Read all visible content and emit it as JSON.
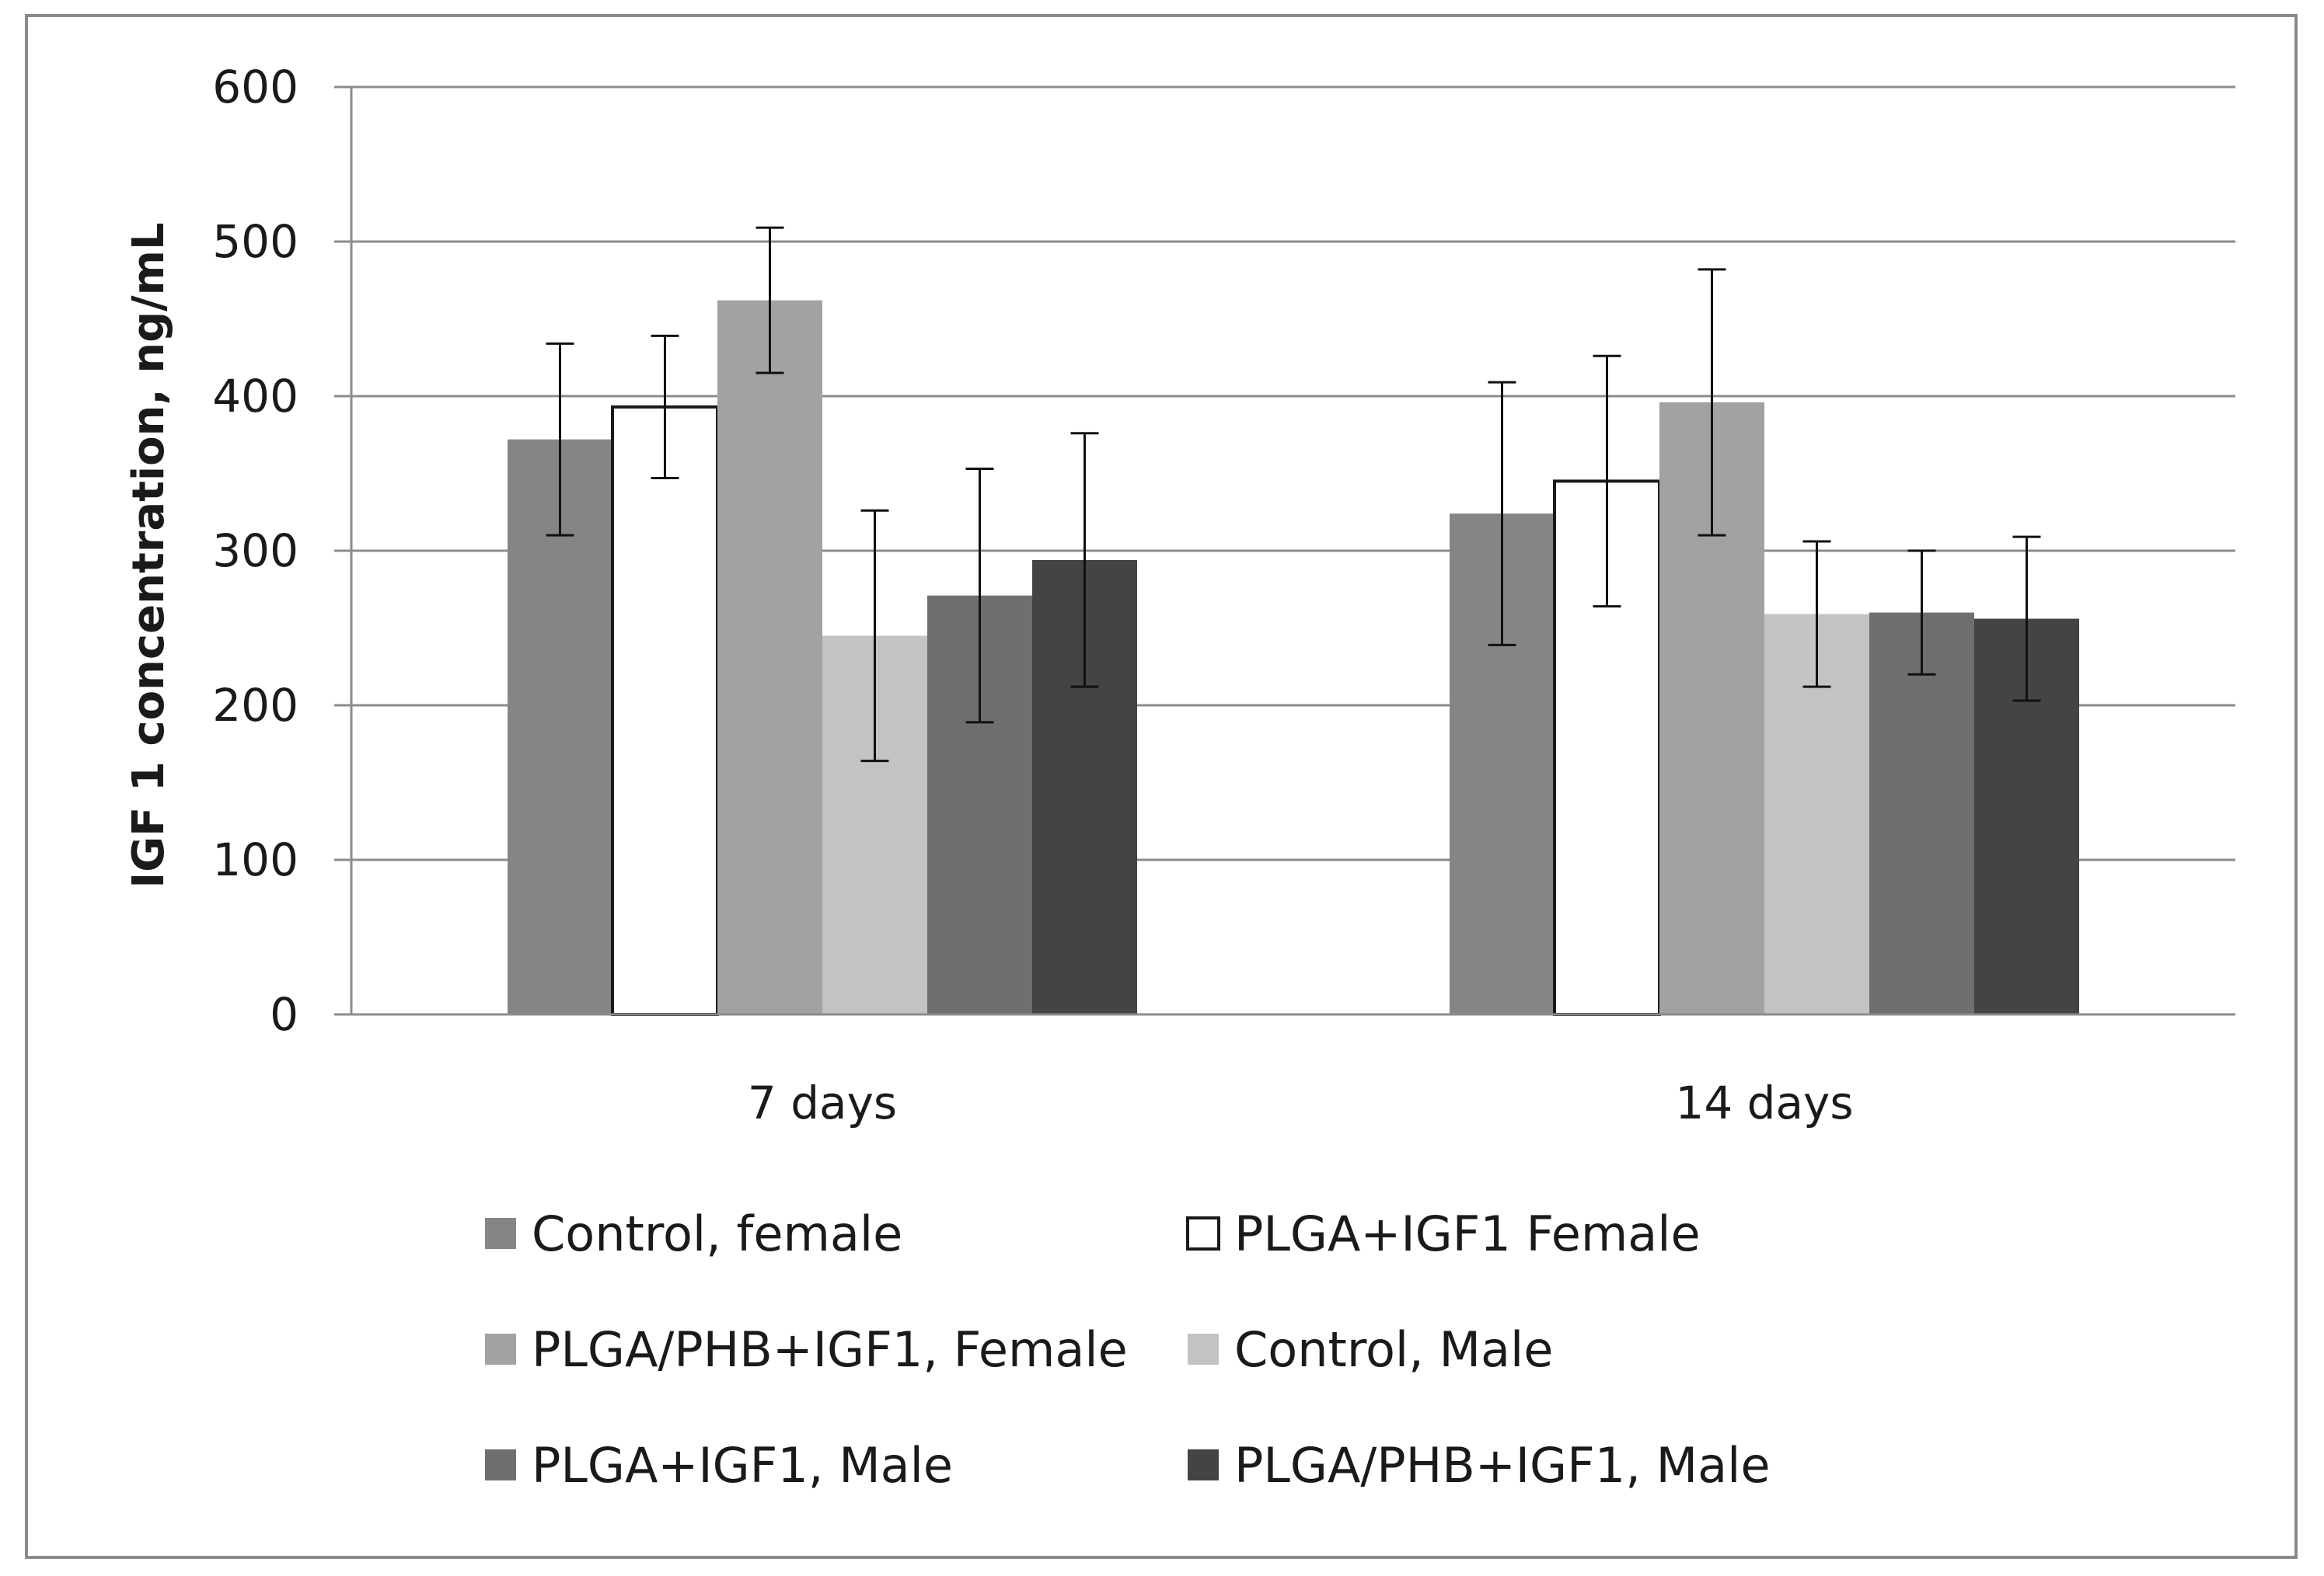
{
  "chart_data": {
    "type": "bar",
    "title": "",
    "xlabel": "",
    "ylabel": "IGF 1 concentration, ng/mL",
    "ylim": [
      0,
      600
    ],
    "yticks": [
      0,
      100,
      200,
      300,
      400,
      500,
      600
    ],
    "grid": true,
    "legend_position": "bottom",
    "categories": [
      "7 days",
      "14 days"
    ],
    "series": [
      {
        "name": "Control, female",
        "color": "#858585",
        "values": [
          372,
          324
        ],
        "errors": [
          62,
          85
        ]
      },
      {
        "name": "PLGA+IGF1 Female",
        "color": "#ffffff",
        "values": [
          393,
          345
        ],
        "errors": [
          46,
          81
        ]
      },
      {
        "name": "PLGA/PHB+IGF1, Female",
        "color": "#a2a2a2",
        "values": [
          462,
          396
        ],
        "errors": [
          47,
          86
        ]
      },
      {
        "name": "Control, Male",
        "color": "#c3c3c3",
        "values": [
          245,
          259
        ],
        "errors": [
          81,
          47
        ]
      },
      {
        "name": "PLGA+IGF1, Male",
        "color": "#6f6f6f",
        "values": [
          271,
          260
        ],
        "errors": [
          82,
          40
        ]
      },
      {
        "name": "PLGA/PHB+IGF1, Male",
        "color": "#444444",
        "values": [
          294,
          256
        ],
        "errors": [
          82,
          53
        ]
      }
    ]
  }
}
